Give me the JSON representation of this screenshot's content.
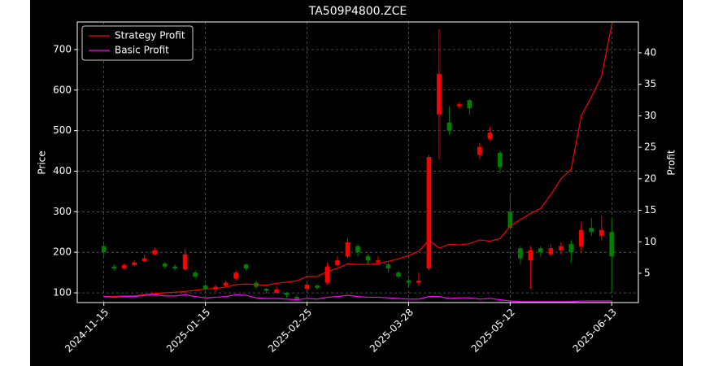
{
  "chart_data": {
    "type": "candlestick",
    "title": "TA509P4800.ZCE",
    "ylabel": "Price",
    "y2label": "Profit",
    "categories": [
      "2024-11-15",
      null,
      null,
      null,
      null,
      null,
      null,
      null,
      null,
      null,
      "2025-01-15",
      null,
      null,
      null,
      null,
      null,
      null,
      null,
      null,
      null,
      "2025-02-25",
      null,
      null,
      null,
      null,
      null,
      null,
      null,
      null,
      null,
      "2025-03-28",
      null,
      null,
      null,
      null,
      null,
      null,
      null,
      null,
      null,
      "2025-05-12",
      null,
      null,
      null,
      null,
      null,
      null,
      null,
      null,
      null,
      "2025-06-13"
    ],
    "open": [
      215,
      165,
      160,
      168,
      178,
      195,
      172,
      165,
      158,
      150,
      118,
      108,
      118,
      135,
      170,
      125,
      110,
      100,
      100,
      90,
      110,
      118,
      125,
      168,
      190,
      215,
      190,
      175,
      170,
      150,
      130,
      125,
      160,
      540,
      520,
      560,
      575,
      440,
      480,
      445,
      300,
      210,
      180,
      210,
      195,
      205,
      220,
      215,
      260,
      240,
      250
    ],
    "high": [
      220,
      170,
      172,
      180,
      195,
      212,
      175,
      170,
      208,
      155,
      122,
      120,
      130,
      155,
      172,
      130,
      112,
      115,
      102,
      95,
      125,
      122,
      175,
      190,
      235,
      220,
      195,
      190,
      175,
      155,
      135,
      150,
      440,
      750,
      560,
      570,
      578,
      470,
      510,
      450,
      340,
      215,
      215,
      215,
      220,
      225,
      230,
      275,
      285,
      290,
      285
    ],
    "low": [
      190,
      155,
      158,
      165,
      175,
      192,
      160,
      155,
      155,
      135,
      105,
      102,
      115,
      130,
      155,
      110,
      98,
      98,
      88,
      80,
      105,
      108,
      120,
      165,
      185,
      190,
      170,
      172,
      150,
      135,
      115,
      118,
      155,
      430,
      490,
      555,
      540,
      430,
      475,
      395,
      255,
      170,
      110,
      190,
      190,
      195,
      175,
      200,
      240,
      230,
      100
    ],
    "close": [
      200,
      160,
      168,
      175,
      185,
      205,
      165,
      160,
      195,
      140,
      110,
      115,
      125,
      150,
      160,
      115,
      105,
      108,
      95,
      85,
      120,
      112,
      165,
      180,
      225,
      200,
      180,
      180,
      160,
      140,
      125,
      130,
      435,
      640,
      500,
      565,
      555,
      460,
      495,
      410,
      260,
      185,
      205,
      200,
      210,
      215,
      200,
      255,
      250,
      255,
      190
    ],
    "up_color": "#ff0000",
    "down_color": "#008000",
    "series": [
      {
        "name": "Strategy Profit",
        "color": "#ff0000",
        "axis": "y2",
        "values": [
          1.3,
          1.3,
          1.4,
          1.4,
          1.6,
          1.8,
          1.9,
          2.0,
          2.1,
          2.3,
          2.5,
          2.6,
          2.8,
          3.2,
          3.3,
          3.2,
          3.1,
          3.4,
          3.6,
          3.8,
          4.5,
          4.5,
          5.3,
          5.8,
          6.5,
          6.4,
          6.4,
          6.5,
          6.9,
          7.3,
          7.8,
          8.5,
          10.3,
          9.0,
          9.6,
          9.5,
          9.7,
          10.3,
          10.1,
          10.5,
          12.5,
          13.5,
          14.5,
          15.3,
          17.5,
          20.0,
          21.5,
          30,
          33,
          36.3,
          44.5
        ]
      },
      {
        "name": "Basic Profit",
        "color": "#ff00ff",
        "axis": "y2",
        "values": [
          1.3,
          1.2,
          1.3,
          1.3,
          1.5,
          1.6,
          1.4,
          1.4,
          1.6,
          1.3,
          1.1,
          1.2,
          1.3,
          1.6,
          1.5,
          1.1,
          1.0,
          1.0,
          0.9,
          0.8,
          1.0,
          0.9,
          1.2,
          1.3,
          1.5,
          1.3,
          1.2,
          1.2,
          1.1,
          1.0,
          0.9,
          0.9,
          1.3,
          1.3,
          1.0,
          1.1,
          1.1,
          0.9,
          1.0,
          0.8,
          0.6,
          0.5,
          0.5,
          0.5,
          0.5,
          0.5,
          0.5,
          0.6,
          0.6,
          0.6,
          0.6
        ]
      }
    ],
    "ylim": [
      76,
      768
    ],
    "yticks": [
      100,
      200,
      300,
      400,
      500,
      600,
      700
    ],
    "y2lim": [
      0.35,
      44.9
    ],
    "y2ticks": [
      5,
      10,
      15,
      20,
      25,
      30,
      35,
      40
    ],
    "grid": true,
    "legend": "upper left"
  }
}
